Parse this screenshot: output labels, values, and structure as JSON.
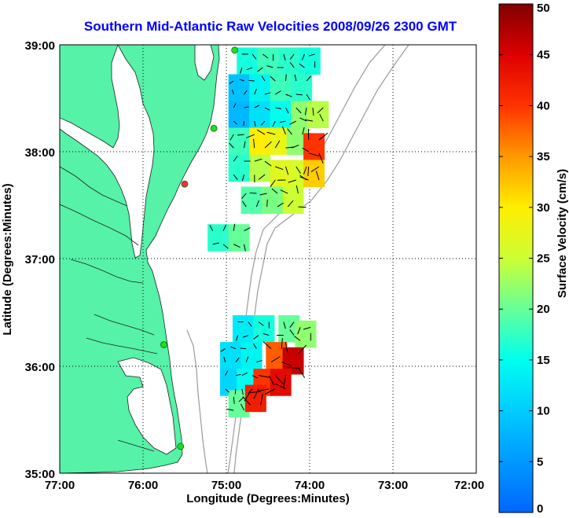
{
  "chart_data": {
    "type": "heatmap",
    "title": "Southern Mid-Atlantic Raw Velocities 2008/09/26 2300 GMT",
    "xlabel": "Longitude (Degrees:Minutes)",
    "ylabel": "Latitude (Degrees:Minutes)",
    "x_ticks": [
      "77:00",
      "76:00",
      "75:00",
      "74:00",
      "73:00",
      "72:00"
    ],
    "y_ticks": [
      "39:00",
      "38:00",
      "37:00",
      "36:00",
      "35:00"
    ],
    "xlim": [
      -77,
      -72
    ],
    "ylim": [
      35,
      39
    ],
    "grid": true,
    "colorbar": {
      "label": "Surface Velocity (cm/s)",
      "range": [
        0,
        50
      ],
      "ticks": [
        "0",
        "5",
        "10",
        "15",
        "20",
        "25",
        "30",
        "35",
        "40",
        "45",
        "50"
      ]
    },
    "colors": {
      "land": "#55f2a8",
      "water": "#ffffff",
      "bathymetry": "#9a9a9a",
      "station": "#22dd22",
      "station_offline": "#ee3333"
    },
    "stations": [
      {
        "lon": -74.9,
        "lat": 38.95,
        "status": "on"
      },
      {
        "lon": -75.15,
        "lat": 38.22,
        "status": "on"
      },
      {
        "lon": -75.5,
        "lat": 37.7,
        "status": "off"
      },
      {
        "lon": -75.75,
        "lat": 36.2,
        "status": "on"
      },
      {
        "lon": -75.55,
        "lat": 35.25,
        "status": "on"
      }
    ],
    "series": [
      {
        "region": "north",
        "cells": [
          {
            "lon": -74.75,
            "lat": 38.85,
            "speed": 16
          },
          {
            "lon": -74.5,
            "lat": 38.85,
            "speed": 18
          },
          {
            "lon": -74.25,
            "lat": 38.85,
            "speed": 17
          },
          {
            "lon": -74.0,
            "lat": 38.85,
            "speed": 16
          },
          {
            "lon": -74.85,
            "lat": 38.6,
            "speed": 9
          },
          {
            "lon": -74.6,
            "lat": 38.6,
            "speed": 14
          },
          {
            "lon": -74.35,
            "lat": 38.6,
            "speed": 18
          },
          {
            "lon": -74.1,
            "lat": 38.6,
            "speed": 17
          },
          {
            "lon": -74.85,
            "lat": 38.35,
            "speed": 8
          },
          {
            "lon": -74.6,
            "lat": 38.35,
            "speed": 12
          },
          {
            "lon": -74.35,
            "lat": 38.35,
            "speed": 15
          },
          {
            "lon": -74.1,
            "lat": 38.35,
            "speed": 22
          },
          {
            "lon": -73.9,
            "lat": 38.35,
            "speed": 24
          },
          {
            "lon": -74.85,
            "lat": 38.1,
            "speed": 18
          },
          {
            "lon": -74.6,
            "lat": 38.1,
            "speed": 30
          },
          {
            "lon": -74.35,
            "lat": 38.1,
            "speed": 28
          },
          {
            "lon": -74.15,
            "lat": 38.1,
            "speed": 22
          },
          {
            "lon": -73.95,
            "lat": 38.05,
            "speed": 40
          },
          {
            "lon": -74.85,
            "lat": 37.85,
            "speed": 17
          },
          {
            "lon": -74.6,
            "lat": 37.85,
            "speed": 24
          },
          {
            "lon": -74.35,
            "lat": 37.8,
            "speed": 27
          },
          {
            "lon": -74.1,
            "lat": 37.8,
            "speed": 26
          },
          {
            "lon": -73.95,
            "lat": 37.8,
            "speed": 32
          },
          {
            "lon": -74.7,
            "lat": 37.55,
            "speed": 19
          },
          {
            "lon": -74.45,
            "lat": 37.55,
            "speed": 21
          },
          {
            "lon": -74.2,
            "lat": 37.55,
            "speed": 25
          },
          {
            "lon": -75.1,
            "lat": 37.2,
            "speed": 17
          },
          {
            "lon": -74.85,
            "lat": 37.2,
            "speed": 20
          }
        ]
      },
      {
        "region": "south",
        "cells": [
          {
            "lon": -74.8,
            "lat": 36.35,
            "speed": 13
          },
          {
            "lon": -74.55,
            "lat": 36.35,
            "speed": 16
          },
          {
            "lon": -74.25,
            "lat": 36.35,
            "speed": 20
          },
          {
            "lon": -74.05,
            "lat": 36.3,
            "speed": 22
          },
          {
            "lon": -74.95,
            "lat": 36.1,
            "speed": 12
          },
          {
            "lon": -74.7,
            "lat": 36.1,
            "speed": 14
          },
          {
            "lon": -74.4,
            "lat": 36.1,
            "speed": 38
          },
          {
            "lon": -74.2,
            "lat": 36.05,
            "speed": 46
          },
          {
            "lon": -74.95,
            "lat": 35.85,
            "speed": 11
          },
          {
            "lon": -74.75,
            "lat": 35.85,
            "speed": 15
          },
          {
            "lon": -74.55,
            "lat": 35.85,
            "speed": 40
          },
          {
            "lon": -74.35,
            "lat": 35.85,
            "speed": 44
          },
          {
            "lon": -74.85,
            "lat": 35.65,
            "speed": 20
          },
          {
            "lon": -74.65,
            "lat": 35.7,
            "speed": 42
          }
        ]
      }
    ]
  }
}
